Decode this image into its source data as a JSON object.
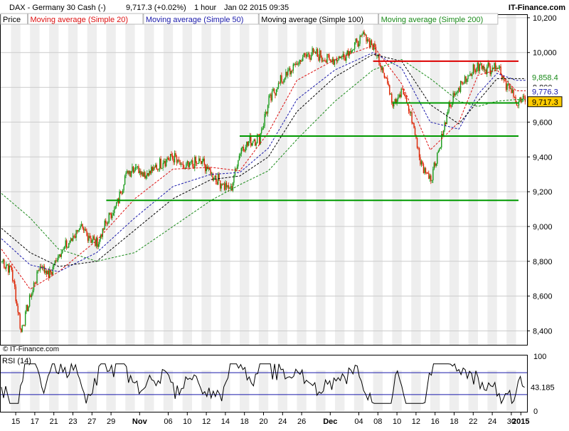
{
  "header": {
    "title": "DAX - Germany 30 Cash (-)",
    "last_change": "9,717.3 (+0.02%)",
    "interval": "1 hour",
    "datetime": "Jan 02 2015 09:35",
    "brand": "IT-Finance.com"
  },
  "legend": [
    {
      "name": "Price",
      "color": "#000000"
    },
    {
      "name": "Moving average (Simple 20)",
      "color": "#dd1111"
    },
    {
      "name": "Moving average (Simple 50)",
      "color": "#1a1aaa"
    },
    {
      "name": "Moving average (Simple 100)",
      "color": "#000000"
    },
    {
      "name": "Moving average (Simple 200)",
      "color": "#1a8a1a"
    }
  ],
  "copyright": "© IT-Finance.com",
  "rsi_label": "RSI (14)",
  "colors": {
    "up": "#1a9a1a",
    "down": "#dd2200",
    "resistance": "#dd0000",
    "support": "#009900",
    "grid": "#cccccc",
    "band": "#eeeeee"
  },
  "chart_data": [
    {
      "type": "line",
      "title": "DAX - Germany 30 Cash (-)",
      "ylim": [
        8320,
        10220
      ],
      "y_ticks": [
        "8,400",
        "8,600",
        "8,800",
        "9,000",
        "9,200",
        "9,400",
        "9,600",
        "9,800",
        "10,000",
        "10,200"
      ],
      "y_tick_values": [
        8400,
        8600,
        8800,
        9000,
        9200,
        9400,
        9600,
        9800,
        10000,
        10200
      ],
      "x_ticks": [
        "15",
        "17",
        "21",
        "23",
        "27",
        "29",
        "Nov",
        "06",
        "10",
        "12",
        "14",
        "18",
        "20",
        "24",
        "26",
        "Dec",
        "04",
        "08",
        "10",
        "12",
        "16",
        "18",
        "22",
        "24",
        "30",
        "2015"
      ],
      "price_path": [
        [
          "Oct 14",
          8800
        ],
        [
          "Oct 15",
          8750
        ],
        [
          "Oct 16",
          8400
        ],
        [
          "Oct 17",
          8600
        ],
        [
          "Oct 20",
          8780
        ],
        [
          "Oct 21",
          8720
        ],
        [
          "Oct 22",
          8850
        ],
        [
          "Oct 23",
          8900
        ],
        [
          "Oct 24",
          8990
        ],
        [
          "Oct 27",
          8950
        ],
        [
          "Oct 28",
          8900
        ],
        [
          "Oct 29",
          9030
        ],
        [
          "Oct 30",
          9120
        ],
        [
          "Oct 31",
          9300
        ],
        [
          "Nov 03",
          9350
        ],
        [
          "Nov 04",
          9300
        ],
        [
          "Nov 05",
          9330
        ],
        [
          "Nov 06",
          9380
        ],
        [
          "Nov 07",
          9400
        ],
        [
          "Nov 10",
          9330
        ],
        [
          "Nov 11",
          9360
        ],
        [
          "Nov 12",
          9370
        ],
        [
          "Nov 13",
          9300
        ],
        [
          "Nov 14",
          9250
        ],
        [
          "Nov 17",
          9210
        ],
        [
          "Nov 18",
          9440
        ],
        [
          "Nov 19",
          9490
        ],
        [
          "Nov 20",
          9510
        ],
        [
          "Nov 21",
          9720
        ],
        [
          "Nov 24",
          9820
        ],
        [
          "Nov 25",
          9880
        ],
        [
          "Nov 26",
          9940
        ],
        [
          "Nov 27",
          9990
        ],
        [
          "Nov 28",
          9990
        ],
        [
          "Dec 01",
          9960
        ],
        [
          "Dec 02",
          9960
        ],
        [
          "Dec 03",
          9990
        ],
        [
          "Dec 04",
          10040
        ],
        [
          "Dec 05",
          10100
        ],
        [
          "Dec 08",
          10030
        ],
        [
          "Dec 09",
          9900
        ],
        [
          "Dec 10",
          9720
        ],
        [
          "Dec 11",
          9780
        ],
        [
          "Dec 12",
          9620
        ],
        [
          "Dec 15",
          9350
        ],
        [
          "Dec 16",
          9280
        ],
        [
          "Dec 17",
          9480
        ],
        [
          "Dec 18",
          9700
        ],
        [
          "Dec 19",
          9800
        ],
        [
          "Dec 22",
          9880
        ],
        [
          "Dec 23",
          9920
        ],
        [
          "Dec 24",
          9910
        ],
        [
          "Dec 29",
          9930
        ],
        [
          "Dec 30",
          9810
        ],
        [
          "Jan 02",
          9717
        ]
      ],
      "ma_20": [
        [
          "Oct 14",
          8870
        ],
        [
          "Oct 17",
          8640
        ],
        [
          "Oct 22",
          8740
        ],
        [
          "Oct 28",
          8920
        ],
        [
          "Nov 03",
          9160
        ],
        [
          "Nov 07",
          9330
        ],
        [
          "Nov 13",
          9340
        ],
        [
          "Nov 18",
          9320
        ],
        [
          "Nov 21",
          9540
        ],
        [
          "Nov 26",
          9840
        ],
        [
          "Dec 02",
          9960
        ],
        [
          "Dec 08",
          10040
        ],
        [
          "Dec 11",
          9820
        ],
        [
          "Dec 16",
          9440
        ],
        [
          "Dec 19",
          9600
        ],
        [
          "Dec 23",
          9870
        ],
        [
          "Dec 29",
          9900
        ],
        [
          "Jan 02",
          9780
        ]
      ],
      "ma_50": [
        [
          "Oct 14",
          8930
        ],
        [
          "Oct 17",
          8780
        ],
        [
          "Oct 22",
          8740
        ],
        [
          "Oct 28",
          8850
        ],
        [
          "Nov 03",
          9050
        ],
        [
          "Nov 07",
          9230
        ],
        [
          "Nov 13",
          9300
        ],
        [
          "Nov 18",
          9310
        ],
        [
          "Nov 21",
          9450
        ],
        [
          "Nov 26",
          9730
        ],
        [
          "Dec 02",
          9900
        ],
        [
          "Dec 08",
          10000
        ],
        [
          "Dec 11",
          9910
        ],
        [
          "Dec 16",
          9600
        ],
        [
          "Dec 19",
          9560
        ],
        [
          "Dec 23",
          9760
        ],
        [
          "Dec 29",
          9880
        ],
        [
          "Jan 02",
          9840
        ]
      ],
      "ma_100": [
        [
          "Oct 14",
          8990
        ],
        [
          "Oct 17",
          8850
        ],
        [
          "Oct 22",
          8770
        ],
        [
          "Oct 28",
          8800
        ],
        [
          "Nov 03",
          8980
        ],
        [
          "Nov 07",
          9160
        ],
        [
          "Nov 13",
          9270
        ],
        [
          "Nov 18",
          9290
        ],
        [
          "Nov 21",
          9400
        ],
        [
          "Nov 26",
          9660
        ],
        [
          "Dec 02",
          9860
        ],
        [
          "Dec 08",
          9990
        ],
        [
          "Dec 11",
          9950
        ],
        [
          "Dec 16",
          9700
        ],
        [
          "Dec 19",
          9590
        ],
        [
          "Dec 23",
          9720
        ],
        [
          "Dec 29",
          9850
        ],
        [
          "Jan 02",
          9850
        ]
      ],
      "ma_200": [
        [
          "Oct 14",
          9190
        ],
        [
          "Oct 17",
          9050
        ],
        [
          "Oct 22",
          8870
        ],
        [
          "Oct 28",
          8800
        ],
        [
          "Nov 03",
          8850
        ],
        [
          "Nov 07",
          9000
        ],
        [
          "Nov 13",
          9150
        ],
        [
          "Nov 18",
          9240
        ],
        [
          "Nov 21",
          9320
        ],
        [
          "Nov 26",
          9500
        ],
        [
          "Dec 02",
          9720
        ],
        [
          "Dec 08",
          9900
        ],
        [
          "Dec 11",
          9960
        ],
        [
          "Dec 16",
          9850
        ],
        [
          "Dec 19",
          9720
        ],
        [
          "Dec 23",
          9690
        ],
        [
          "Dec 29",
          9720
        ],
        [
          "Jan 02",
          9730
        ]
      ],
      "hlines": [
        {
          "name": "resistance",
          "value": 9950,
          "from": "Dec 08",
          "to": "Jan 02"
        },
        {
          "name": "support-1",
          "value": 9710,
          "from": "Dec 10",
          "to": "Jan 02"
        },
        {
          "name": "support-2",
          "value": 9520,
          "from": "Nov 18",
          "to": "Jan 02"
        },
        {
          "name": "support-3",
          "value": 9150,
          "from": "Oct 29",
          "to": "Jan 02"
        }
      ],
      "price_labels": [
        {
          "text": "9,858.4",
          "value": 9858.4,
          "color": "#1a8a1a"
        },
        {
          "text": "9,776.3",
          "value": 9776.3,
          "color": "#1a1aaa"
        },
        {
          "text": "9,717.3",
          "value": 9717.3,
          "color": "#000000"
        }
      ]
    },
    {
      "type": "line",
      "title": "RSI (14)",
      "ylim": [
        0,
        100
      ],
      "y_ticks": [
        "0",
        "100"
      ],
      "levels": [
        70,
        30
      ],
      "last_value": "43.185",
      "last_numeric": 43.185
    }
  ]
}
